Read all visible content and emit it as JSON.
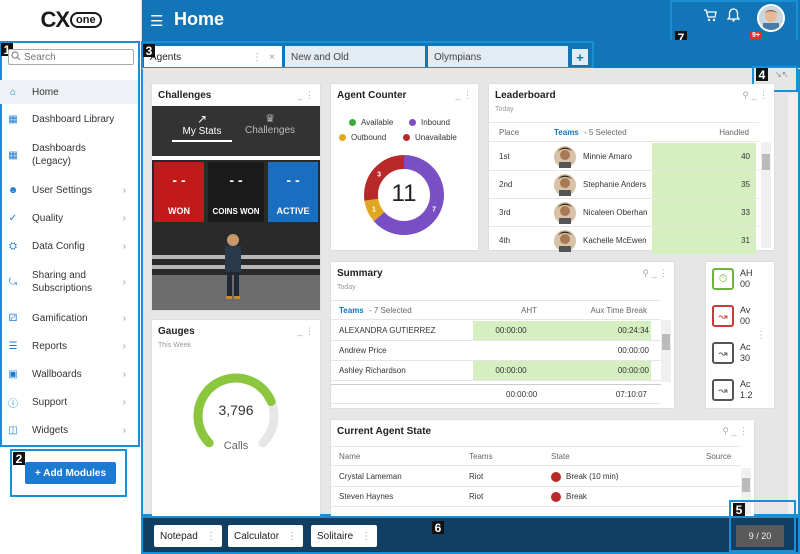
{
  "logo": {
    "cx": "CX",
    "one": "one"
  },
  "sidebar": {
    "search_placeholder": "Search",
    "items": [
      {
        "label": "Home",
        "icon": "home-icon"
      },
      {
        "label": "Dashboard Library",
        "icon": "grid-icon"
      },
      {
        "label": "Dashboards (Legacy)",
        "icon": "grid-icon"
      },
      {
        "label": "User Settings",
        "icon": "user-icon"
      },
      {
        "label": "Quality",
        "icon": "check-icon"
      },
      {
        "label": "Data Config",
        "icon": "data-icon"
      },
      {
        "label": "Sharing and Subscriptions",
        "icon": "share-icon"
      },
      {
        "label": "Gamification",
        "icon": "gamepad-icon"
      },
      {
        "label": "Reports",
        "icon": "report-icon"
      },
      {
        "label": "Wallboards",
        "icon": "monitor-icon"
      },
      {
        "label": "Support",
        "icon": "help-icon"
      },
      {
        "label": "Widgets",
        "icon": "widget-icon"
      }
    ],
    "add_modules": "+ Add Modules"
  },
  "header": {
    "title": "Home",
    "badge": "9+"
  },
  "callouts": [
    "1",
    "2",
    "3",
    "4",
    "5",
    "6",
    "7"
  ],
  "tabs": [
    {
      "label": "Agents"
    },
    {
      "label": "New and Old"
    },
    {
      "label": "Olympians"
    }
  ],
  "challenges": {
    "title": "Challenges",
    "tab_mystats": "My Stats",
    "tab_challenges": "Challenges",
    "won": "WON",
    "coins_won": "COINS WON",
    "active": "ACTIVE",
    "dashes": "-  -"
  },
  "gauges": {
    "title": "Gauges",
    "subtitle": "This Week",
    "value": "3,796",
    "unit": "Calls",
    "fill": 0.75
  },
  "agent_counter": {
    "title": "Agent Counter",
    "legend": [
      "Available",
      "Inbound",
      "Outbound",
      "Unavailable"
    ],
    "colors": {
      "available": "#3aa83a",
      "inbound": "#7b4fc4",
      "outbound": "#e0a820",
      "unavailable": "#b82a2a"
    },
    "total": "11",
    "segments": [
      {
        "label": "7",
        "value": 7,
        "color": "#7b4fc4"
      },
      {
        "label": "1",
        "value": 1,
        "color": "#e0a820"
      },
      {
        "label": "3",
        "value": 3,
        "color": "#b82a2a"
      }
    ]
  },
  "leaderboard": {
    "title": "Leaderboard",
    "subtitle": "Today",
    "headers": [
      "Place",
      "Teams",
      "- 5 Selected",
      "Handled"
    ],
    "rows": [
      {
        "place": "1st",
        "name": "Minnie Amaro",
        "handled": "40"
      },
      {
        "place": "2nd",
        "name": "Stephanie Anders",
        "handled": "35"
      },
      {
        "place": "3rd",
        "name": "Nicaleen Oberhan",
        "handled": "33"
      },
      {
        "place": "4th",
        "name": "Kachelle McEwen",
        "handled": "31"
      }
    ]
  },
  "summary": {
    "title": "Summary",
    "subtitle": "Today",
    "headers": [
      "Teams",
      "- 7 Selected",
      "AHT",
      "Aux Time Break"
    ],
    "rows": [
      {
        "name": "ALEXANDRA GUTIERREZ",
        "aht": "00:00:00",
        "aux": "00:24:34"
      },
      {
        "name": "Andrew Price",
        "aht": "",
        "aux": "00:00:00"
      },
      {
        "name": "Ashley Richardson",
        "aht": "00:00:00",
        "aux": "00:00:00"
      }
    ],
    "total": {
      "aht": "00:00:00",
      "aux": "07:10:07"
    }
  },
  "kpis": [
    {
      "label": "AH",
      "value": "00",
      "color": "#6db33f"
    },
    {
      "label": "Av",
      "value": "00",
      "color": "#c73a3a"
    },
    {
      "label": "Ac",
      "value": "30",
      "color": "#555"
    },
    {
      "label": "Ac",
      "value": "1.2",
      "color": "#555"
    }
  ],
  "agent_state": {
    "title": "Current Agent State",
    "headers": [
      "Name",
      "Teams",
      "State",
      "Source"
    ],
    "rows": [
      {
        "name": "Crystal Lameman",
        "team": "Riot",
        "state": "Break (10 min)",
        "color": "#b82a2a"
      },
      {
        "name": "Steven Haynes",
        "team": "Riot",
        "state": "Break",
        "color": "#b82a2a"
      }
    ]
  },
  "footer": {
    "buttons": [
      "Notepad",
      "Calculator",
      "Solitaire"
    ],
    "pager": "9 / 20"
  }
}
